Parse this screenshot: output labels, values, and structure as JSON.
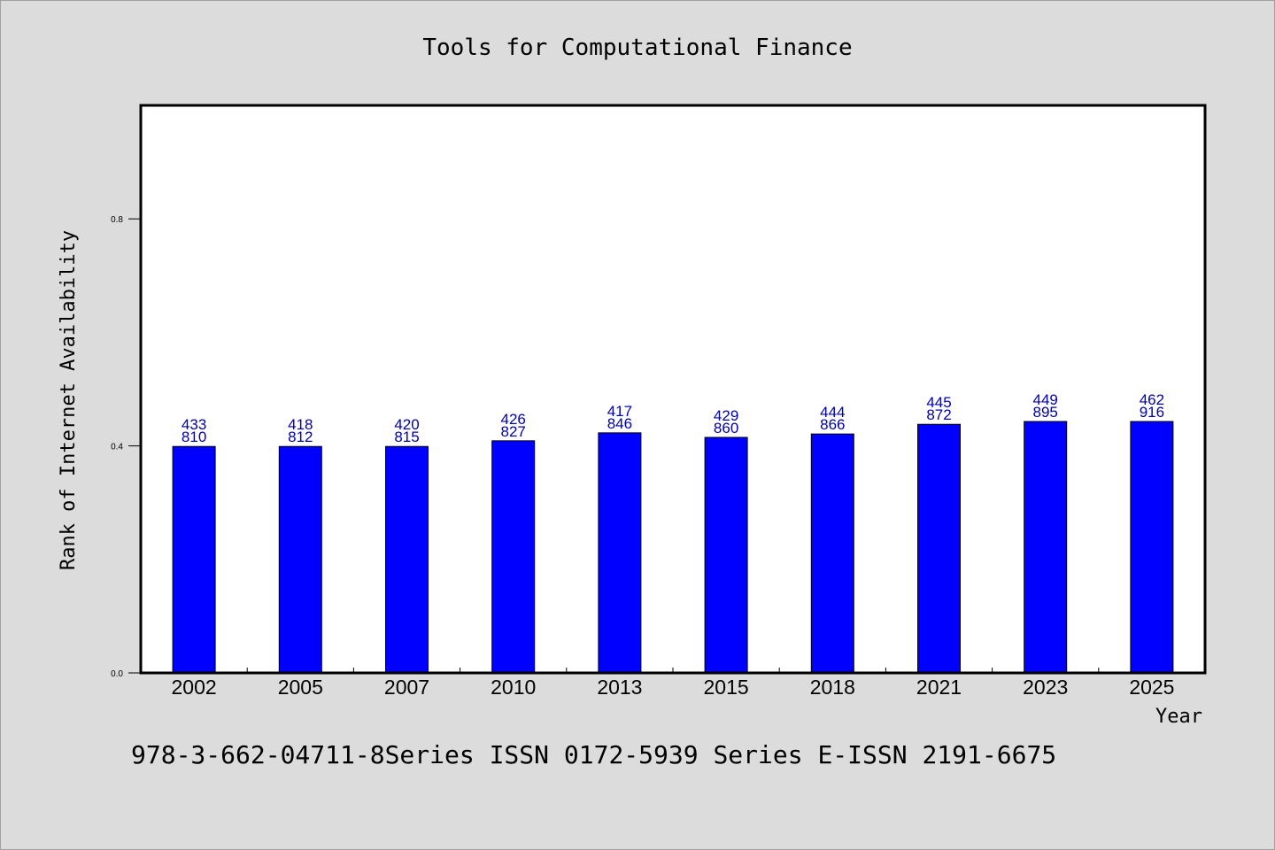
{
  "chart_data": {
    "type": "bar",
    "title": "Tools for Computational Finance",
    "xlabel": "Year",
    "ylabel": "Rank of Internet Availability",
    "categories": [
      "2002",
      "2005",
      "2007",
      "2010",
      "2013",
      "2015",
      "2018",
      "2021",
      "2023",
      "2025"
    ],
    "values": [
      0.399,
      0.399,
      0.399,
      0.409,
      0.423,
      0.415,
      0.421,
      0.438,
      0.443,
      0.443
    ],
    "labels_top": [
      "433",
      "418",
      "420",
      "426",
      "417",
      "429",
      "444",
      "445",
      "449",
      "462"
    ],
    "labels_bottom": [
      "810",
      "812",
      "815",
      "827",
      "846",
      "860",
      "866",
      "872",
      "895",
      "916"
    ],
    "ylim": [
      0,
      1.0
    ],
    "yticks": [
      0.0,
      0.4,
      0.8
    ],
    "ytick_labels": [
      "0.0",
      "0.4",
      "0.8"
    ],
    "grid": false,
    "bar_color": "#0000ff",
    "label_color": "#0000b0",
    "background_color": "#dcdcdc",
    "plot_background": "#ffffff"
  },
  "footer": {
    "text": "978-3-662-04711-8Series ISSN 0172-5939 Series E-ISSN 2191-6675"
  }
}
